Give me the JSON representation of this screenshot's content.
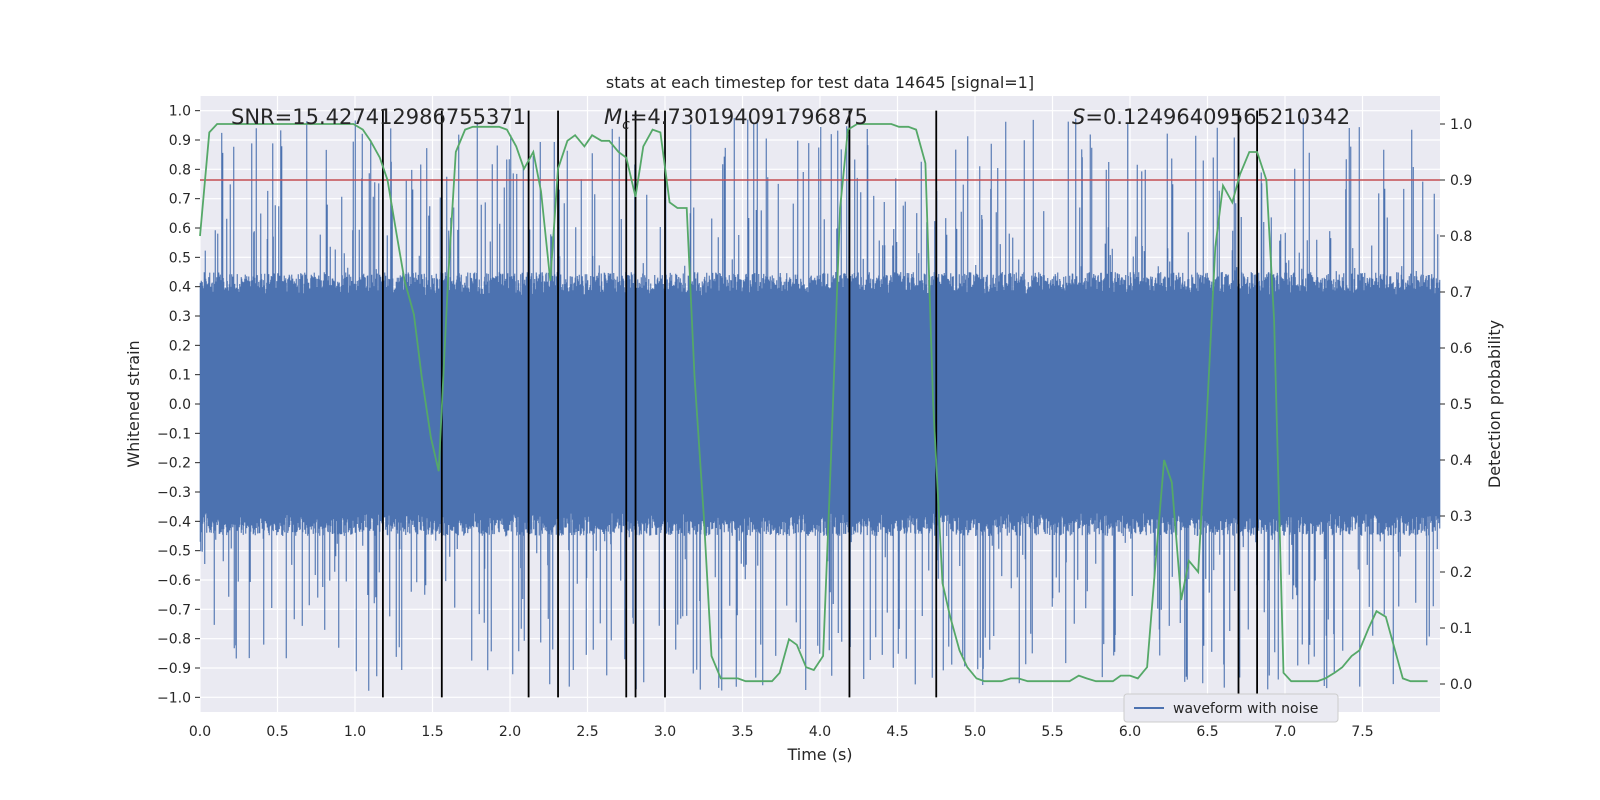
{
  "chart_data": {
    "type": "line",
    "title": "stats at each timestep for test data 14645 [signal=1]",
    "xlabel": "Time (s)",
    "ylabel": "Whitened strain",
    "y2label": "Detection probability",
    "xlim": [
      0,
      8
    ],
    "ylim": [
      -1.05,
      1.05
    ],
    "y2lim": [
      -0.05,
      1.05
    ],
    "xticks": [
      "0.0",
      "0.5",
      "1.0",
      "1.5",
      "2.0",
      "2.5",
      "3.0",
      "3.5",
      "4.0",
      "4.5",
      "5.0",
      "5.5",
      "6.0",
      "6.5",
      "7.0",
      "7.5"
    ],
    "yticks": [
      "1.0",
      "0.9",
      "0.8",
      "0.7",
      "0.6",
      "0.5",
      "0.4",
      "0.3",
      "0.2",
      "0.1",
      "0.0",
      "−0.1",
      "−0.2",
      "−0.3",
      "−0.4",
      "−0.5",
      "−0.6",
      "−0.7",
      "−0.8",
      "−0.9",
      "−1.0"
    ],
    "y2ticks": [
      "1.0",
      "0.9",
      "0.8",
      "0.7",
      "0.6",
      "0.5",
      "0.4",
      "0.3",
      "0.2",
      "0.1",
      "0.0"
    ],
    "grid": true,
    "annotations": {
      "snr": "SNR=15.427412986755371",
      "mc_symbol": "M",
      "mc_sub": "c",
      "mc_value": "=4.730194091796875",
      "s_symbol": "S",
      "s_value": "=0.12496409565210342"
    },
    "threshold": 0.9,
    "vlines": [
      1.18,
      1.56,
      2.12,
      2.31,
      2.75,
      2.81,
      3.0,
      4.19,
      4.75,
      6.7,
      6.82
    ],
    "waveform": {
      "name": "waveform with noise",
      "color": "#4c72b0",
      "envelope": 0.4,
      "spike_max": 0.98
    },
    "probability": {
      "color": "#55a868",
      "x": [
        0.0,
        0.06,
        0.11,
        0.17,
        0.22,
        0.28,
        0.33,
        0.39,
        0.44,
        0.5,
        0.55,
        0.61,
        0.66,
        0.72,
        0.77,
        0.83,
        0.88,
        0.94,
        0.99,
        1.05,
        1.1,
        1.16,
        1.21,
        1.27,
        1.32,
        1.38,
        1.43,
        1.49,
        1.54,
        1.6,
        1.65,
        1.71,
        1.76,
        1.82,
        1.87,
        1.93,
        1.98,
        2.04,
        2.09,
        2.15,
        2.2,
        2.26,
        2.31,
        2.37,
        2.42,
        2.48,
        2.53,
        2.59,
        2.64,
        2.7,
        2.75,
        2.81,
        2.86,
        2.92,
        2.97,
        3.03,
        3.08,
        3.14,
        3.19,
        3.25,
        3.3,
        3.36,
        3.41,
        3.47,
        3.52,
        3.58,
        3.63,
        3.69,
        3.74,
        3.8,
        3.85,
        3.91,
        3.96,
        4.02,
        4.07,
        4.13,
        4.18,
        4.24,
        4.29,
        4.35,
        4.4,
        4.46,
        4.51,
        4.57,
        4.62,
        4.68,
        4.73,
        4.79,
        4.84,
        4.9,
        4.95,
        5.01,
        5.06,
        5.12,
        5.17,
        5.23,
        5.28,
        5.34,
        5.39,
        5.45,
        5.5,
        5.56,
        5.61,
        5.67,
        5.72,
        5.78,
        5.83,
        5.89,
        5.94,
        6.0,
        6.05,
        6.11,
        6.16,
        6.22,
        6.27,
        6.33,
        6.38,
        6.44,
        6.49,
        6.55,
        6.6,
        6.66,
        6.71,
        6.77,
        6.82,
        6.88,
        6.93,
        6.99,
        7.04,
        7.1,
        7.15,
        7.21,
        7.26,
        7.32,
        7.37,
        7.43,
        7.48,
        7.54,
        7.59,
        7.65,
        7.7,
        7.76,
        7.81,
        7.87,
        7.92
      ],
      "values": [
        0.8,
        0.985,
        1.0,
        1.0,
        1.0,
        1.0,
        1.0,
        1.0,
        1.0,
        1.0,
        1.0,
        1.0,
        1.0,
        1.0,
        1.0,
        1.0,
        1.0,
        1.0,
        1.0,
        0.99,
        0.97,
        0.94,
        0.9,
        0.8,
        0.72,
        0.66,
        0.55,
        0.44,
        0.38,
        0.72,
        0.95,
        0.99,
        0.995,
        0.995,
        0.995,
        0.995,
        0.99,
        0.96,
        0.92,
        0.95,
        0.88,
        0.72,
        0.92,
        0.97,
        0.98,
        0.96,
        0.98,
        0.97,
        0.97,
        0.95,
        0.94,
        0.87,
        0.96,
        0.99,
        0.985,
        0.86,
        0.85,
        0.85,
        0.55,
        0.3,
        0.05,
        0.01,
        0.01,
        0.01,
        0.005,
        0.005,
        0.005,
        0.005,
        0.02,
        0.08,
        0.07,
        0.03,
        0.025,
        0.05,
        0.4,
        0.85,
        0.99,
        1.0,
        1.0,
        1.0,
        1.0,
        1.0,
        0.995,
        0.995,
        0.99,
        0.93,
        0.5,
        0.18,
        0.12,
        0.06,
        0.03,
        0.01,
        0.005,
        0.005,
        0.005,
        0.01,
        0.01,
        0.005,
        0.005,
        0.005,
        0.005,
        0.005,
        0.005,
        0.015,
        0.01,
        0.005,
        0.005,
        0.005,
        0.015,
        0.015,
        0.01,
        0.03,
        0.2,
        0.4,
        0.36,
        0.15,
        0.22,
        0.2,
        0.45,
        0.78,
        0.89,
        0.86,
        0.91,
        0.95,
        0.95,
        0.9,
        0.65,
        0.02,
        0.005,
        0.005,
        0.005,
        0.005,
        0.01,
        0.02,
        0.03,
        0.05,
        0.06,
        0.1,
        0.13,
        0.12,
        0.07,
        0.01,
        0.005,
        0.005,
        0.005
      ]
    },
    "legend": {
      "placement": "lower-right",
      "entries": [
        "waveform with noise"
      ]
    }
  }
}
